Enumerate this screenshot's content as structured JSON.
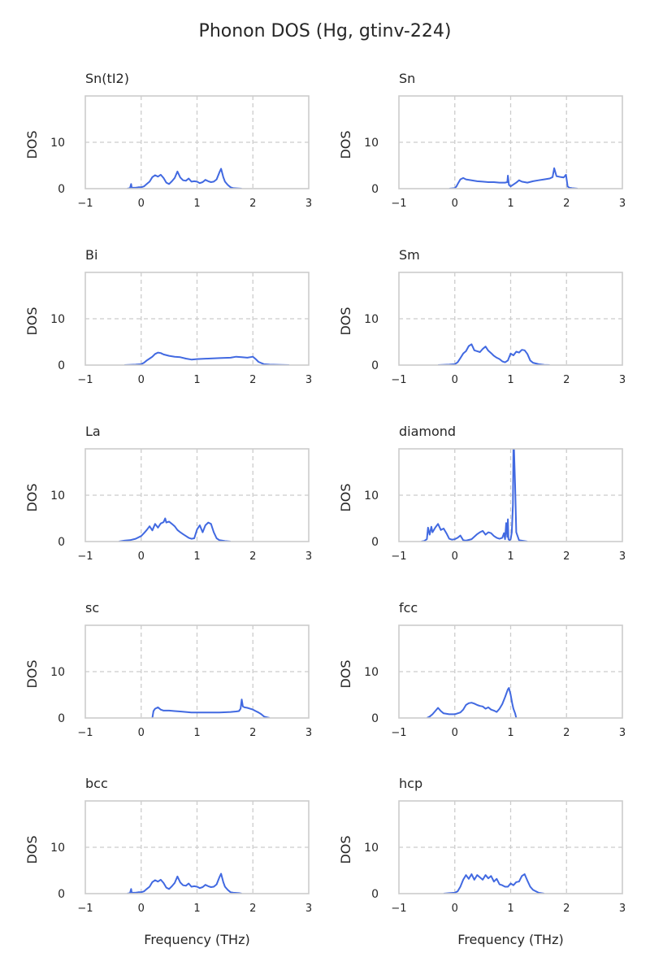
{
  "figure": {
    "title": "Phonon DOS (Hg, gtinv-224)",
    "line_color": "#4169e1",
    "frame_color": "#cccccc",
    "grid_color": "#cccccc",
    "text_color": "#262626"
  },
  "chart_data": [
    {
      "type": "line",
      "title": "Sn(tI2)",
      "ylabel": "DOS",
      "xlabel": "",
      "xlim": [
        -1,
        3
      ],
      "ylim": [
        0,
        20
      ],
      "xticks": [
        -1,
        0,
        1,
        2,
        3
      ],
      "xtick_labels": [
        "−1",
        "0",
        "1",
        "2",
        "3"
      ],
      "yticks": [
        0,
        10
      ],
      "ytick_labels": [
        "0",
        "10"
      ],
      "grid": true,
      "series": [
        {
          "x": [
            -0.25,
            -0.2,
            -0.18,
            -0.17,
            -0.15,
            -0.1,
            -0.05,
            0.0,
            0.05,
            0.1,
            0.15,
            0.2,
            0.25,
            0.3,
            0.35,
            0.4,
            0.45,
            0.5,
            0.55,
            0.6,
            0.65,
            0.7,
            0.75,
            0.8,
            0.85,
            0.9,
            0.95,
            1.0,
            1.05,
            1.1,
            1.15,
            1.2,
            1.25,
            1.3,
            1.35,
            1.4,
            1.43,
            1.47,
            1.5,
            1.55,
            1.6,
            1.65,
            1.8
          ],
          "y": [
            0,
            0.1,
            1.0,
            0.2,
            0.2,
            0.2,
            0.3,
            0.3,
            0.5,
            1.0,
            1.5,
            2.5,
            2.9,
            2.6,
            3.0,
            2.3,
            1.3,
            1.0,
            1.6,
            2.3,
            3.7,
            2.4,
            1.8,
            1.7,
            2.2,
            1.5,
            1.6,
            1.5,
            1.2,
            1.4,
            1.9,
            1.6,
            1.4,
            1.5,
            2.0,
            3.5,
            4.3,
            2.5,
            1.5,
            0.8,
            0.3,
            0.1,
            0
          ]
        }
      ]
    },
    {
      "type": "line",
      "title": "Sn",
      "ylabel": "DOS",
      "xlabel": "",
      "xlim": [
        -1,
        3
      ],
      "ylim": [
        0,
        20
      ],
      "xticks": [
        -1,
        0,
        1,
        2,
        3
      ],
      "xtick_labels": [
        "−1",
        "0",
        "1",
        "2",
        "3"
      ],
      "yticks": [
        0,
        10
      ],
      "ytick_labels": [
        "0",
        "10"
      ],
      "grid": true,
      "series": [
        {
          "x": [
            -0.1,
            0.0,
            0.03,
            0.06,
            0.1,
            0.15,
            0.2,
            0.3,
            0.4,
            0.5,
            0.6,
            0.7,
            0.8,
            0.9,
            0.94,
            0.95,
            0.97,
            1.0,
            1.05,
            1.1,
            1.15,
            1.2,
            1.3,
            1.4,
            1.5,
            1.6,
            1.7,
            1.75,
            1.78,
            1.82,
            1.9,
            1.95,
            1.99,
            2.02,
            2.05,
            2.1,
            2.2
          ],
          "y": [
            0,
            0.1,
            0.5,
            1.2,
            2.0,
            2.3,
            2.0,
            1.8,
            1.6,
            1.5,
            1.4,
            1.4,
            1.3,
            1.3,
            1.4,
            2.8,
            0.8,
            0.5,
            0.9,
            1.3,
            1.8,
            1.5,
            1.3,
            1.6,
            1.8,
            2.0,
            2.2,
            2.5,
            4.4,
            2.7,
            2.5,
            2.4,
            3.0,
            0.5,
            0.2,
            0.1,
            0
          ]
        }
      ]
    },
    {
      "type": "line",
      "title": "Bi",
      "ylabel": "DOS",
      "xlabel": "",
      "xlim": [
        -1,
        3
      ],
      "ylim": [
        0,
        20
      ],
      "xticks": [
        -1,
        0,
        1,
        2,
        3
      ],
      "xtick_labels": [
        "−1",
        "0",
        "1",
        "2",
        "3"
      ],
      "yticks": [
        0,
        10
      ],
      "ytick_labels": [
        "0",
        "10"
      ],
      "grid": true,
      "series": [
        {
          "x": [
            -0.3,
            -0.1,
            0.0,
            0.05,
            0.1,
            0.15,
            0.2,
            0.25,
            0.3,
            0.35,
            0.4,
            0.5,
            0.6,
            0.7,
            0.8,
            0.9,
            1.0,
            1.2,
            1.4,
            1.6,
            1.7,
            1.8,
            1.9,
            2.0,
            2.05,
            2.1,
            2.2,
            2.3,
            2.5,
            2.65
          ],
          "y": [
            0,
            0.1,
            0.2,
            0.5,
            1.0,
            1.4,
            1.8,
            2.4,
            2.7,
            2.6,
            2.3,
            2.0,
            1.8,
            1.7,
            1.4,
            1.2,
            1.3,
            1.4,
            1.5,
            1.6,
            1.8,
            1.7,
            1.6,
            1.8,
            1.3,
            0.7,
            0.2,
            0.1,
            0.05,
            0
          ]
        }
      ]
    },
    {
      "type": "line",
      "title": "Sm",
      "ylabel": "DOS",
      "xlabel": "",
      "xlim": [
        -1,
        3
      ],
      "ylim": [
        0,
        20
      ],
      "xticks": [
        -1,
        0,
        1,
        2,
        3
      ],
      "xtick_labels": [
        "−1",
        "0",
        "1",
        "2",
        "3"
      ],
      "yticks": [
        0,
        10
      ],
      "ytick_labels": [
        "0",
        "10"
      ],
      "grid": true,
      "series": [
        {
          "x": [
            -0.3,
            -0.1,
            0.0,
            0.05,
            0.1,
            0.15,
            0.2,
            0.25,
            0.3,
            0.35,
            0.4,
            0.45,
            0.5,
            0.55,
            0.6,
            0.65,
            0.7,
            0.75,
            0.8,
            0.85,
            0.9,
            0.95,
            1.0,
            1.05,
            1.1,
            1.15,
            1.2,
            1.25,
            1.3,
            1.35,
            1.4,
            1.5,
            1.6,
            1.7
          ],
          "y": [
            0,
            0.1,
            0.2,
            0.6,
            1.5,
            2.5,
            3.0,
            4.1,
            4.5,
            3.2,
            3.0,
            2.8,
            3.5,
            4.0,
            3.1,
            2.6,
            2.0,
            1.6,
            1.3,
            0.8,
            0.6,
            1.0,
            2.5,
            2.1,
            2.9,
            2.7,
            3.3,
            3.2,
            2.4,
            1.0,
            0.5,
            0.2,
            0.05,
            0
          ]
        }
      ]
    },
    {
      "type": "line",
      "title": "La",
      "ylabel": "DOS",
      "xlabel": "",
      "xlim": [
        -1,
        3
      ],
      "ylim": [
        0,
        20
      ],
      "xticks": [
        -1,
        0,
        1,
        2,
        3
      ],
      "xtick_labels": [
        "−1",
        "0",
        "1",
        "2",
        "3"
      ],
      "yticks": [
        0,
        10
      ],
      "ytick_labels": [
        "0",
        "10"
      ],
      "grid": true,
      "series": [
        {
          "x": [
            -0.4,
            -0.3,
            -0.2,
            -0.1,
            0.0,
            0.05,
            0.1,
            0.15,
            0.2,
            0.25,
            0.3,
            0.35,
            0.4,
            0.43,
            0.45,
            0.5,
            0.55,
            0.6,
            0.65,
            0.7,
            0.75,
            0.8,
            0.85,
            0.9,
            0.95,
            1.0,
            1.05,
            1.1,
            1.15,
            1.2,
            1.25,
            1.3,
            1.35,
            1.4,
            1.5,
            1.6
          ],
          "y": [
            0,
            0.2,
            0.3,
            0.6,
            1.2,
            1.8,
            2.5,
            3.3,
            2.4,
            3.8,
            3.0,
            3.9,
            4.2,
            5.0,
            4.1,
            4.3,
            3.8,
            3.3,
            2.5,
            2.0,
            1.6,
            1.2,
            0.8,
            0.6,
            0.7,
            2.6,
            3.5,
            2.0,
            3.5,
            4.1,
            3.8,
            2.0,
            0.7,
            0.3,
            0.1,
            0
          ]
        }
      ]
    },
    {
      "type": "line",
      "title": "diamond",
      "ylabel": "DOS",
      "xlabel": "",
      "xlim": [
        -1,
        3
      ],
      "ylim": [
        0,
        20
      ],
      "xticks": [
        -1,
        0,
        1,
        2,
        3
      ],
      "xtick_labels": [
        "−1",
        "0",
        "1",
        "2",
        "3"
      ],
      "yticks": [
        0,
        10
      ],
      "ytick_labels": [
        "0",
        "10"
      ],
      "grid": true,
      "series": [
        {
          "x": [
            -0.6,
            -0.55,
            -0.5,
            -0.48,
            -0.45,
            -0.42,
            -0.4,
            -0.35,
            -0.3,
            -0.25,
            -0.2,
            -0.15,
            -0.1,
            -0.05,
            0.0,
            0.05,
            0.1,
            0.15,
            0.2,
            0.3,
            0.4,
            0.45,
            0.5,
            0.55,
            0.6,
            0.65,
            0.7,
            0.75,
            0.8,
            0.85,
            0.88,
            0.9,
            0.92,
            0.94,
            0.95,
            0.96,
            0.98,
            1.0,
            1.02,
            1.04,
            1.05,
            1.06,
            1.08,
            1.1,
            1.15,
            1.3
          ],
          "y": [
            0,
            0.1,
            0.5,
            3.0,
            1.5,
            3.2,
            2.0,
            3.0,
            3.8,
            2.5,
            2.8,
            1.8,
            0.6,
            0.4,
            0.5,
            0.8,
            1.3,
            0.3,
            0.2,
            0.5,
            1.6,
            2.0,
            2.3,
            1.5,
            2.0,
            1.8,
            1.2,
            0.8,
            0.6,
            0.8,
            1.8,
            0.5,
            4.0,
            1.0,
            4.8,
            0.5,
            0.3,
            0.5,
            2.0,
            8.0,
            20.0,
            20.0,
            12.0,
            2.0,
            0.3,
            0
          ]
        }
      ]
    },
    {
      "type": "line",
      "title": "sc",
      "ylabel": "DOS",
      "xlabel": "",
      "xlim": [
        -1,
        3
      ],
      "ylim": [
        0,
        20
      ],
      "xticks": [
        -1,
        0,
        1,
        2,
        3
      ],
      "xtick_labels": [
        "−1",
        "0",
        "1",
        "2",
        "3"
      ],
      "yticks": [
        0,
        10
      ],
      "ytick_labels": [
        "0",
        "10"
      ],
      "grid": true,
      "series": [
        {
          "x": [
            0.2,
            0.22,
            0.25,
            0.3,
            0.35,
            0.4,
            0.5,
            0.6,
            0.7,
            0.8,
            0.9,
            1.0,
            1.2,
            1.4,
            1.6,
            1.7,
            1.75,
            1.78,
            1.8,
            1.82,
            1.85,
            1.9,
            1.95,
            2.0,
            2.05,
            2.1,
            2.15,
            2.2,
            2.3
          ],
          "y": [
            0,
            1.5,
            2.0,
            2.3,
            1.8,
            1.6,
            1.6,
            1.5,
            1.4,
            1.3,
            1.2,
            1.2,
            1.2,
            1.2,
            1.3,
            1.4,
            1.5,
            2.0,
            4.0,
            2.5,
            2.3,
            2.2,
            2.0,
            1.8,
            1.5,
            1.2,
            0.8,
            0.3,
            0
          ]
        }
      ]
    },
    {
      "type": "line",
      "title": "fcc",
      "ylabel": "DOS",
      "xlabel": "",
      "xlim": [
        -1,
        3
      ],
      "ylim": [
        0,
        20
      ],
      "xticks": [
        -1,
        0,
        1,
        2,
        3
      ],
      "xtick_labels": [
        "−1",
        "0",
        "1",
        "2",
        "3"
      ],
      "yticks": [
        0,
        10
      ],
      "ytick_labels": [
        "0",
        "10"
      ],
      "grid": true,
      "series": [
        {
          "x": [
            -0.5,
            -0.45,
            -0.4,
            -0.35,
            -0.3,
            -0.25,
            -0.2,
            -0.1,
            0.0,
            0.1,
            0.15,
            0.2,
            0.25,
            0.3,
            0.35,
            0.4,
            0.45,
            0.5,
            0.55,
            0.6,
            0.65,
            0.7,
            0.75,
            0.8,
            0.85,
            0.9,
            0.95,
            0.97,
            1.0,
            1.03,
            1.05,
            1.08,
            1.1
          ],
          "y": [
            0,
            0.3,
            0.8,
            1.5,
            2.2,
            1.5,
            1.0,
            0.8,
            0.8,
            1.2,
            1.8,
            2.8,
            3.2,
            3.3,
            3.1,
            2.8,
            2.6,
            2.5,
            2.0,
            2.3,
            1.8,
            1.6,
            1.3,
            2.0,
            3.0,
            4.5,
            6.2,
            6.5,
            5.0,
            3.0,
            2.0,
            1.0,
            0
          ]
        }
      ]
    },
    {
      "type": "line",
      "title": "bcc",
      "ylabel": "DOS",
      "xlabel": "Frequency (THz)",
      "xlim": [
        -1,
        3
      ],
      "ylim": [
        0,
        20
      ],
      "xticks": [
        -1,
        0,
        1,
        2,
        3
      ],
      "xtick_labels": [
        "−1",
        "0",
        "1",
        "2",
        "3"
      ],
      "yticks": [
        0,
        10
      ],
      "ytick_labels": [
        "0",
        "10"
      ],
      "grid": true,
      "series": [
        {
          "x": [
            -0.25,
            -0.2,
            -0.18,
            -0.17,
            -0.15,
            -0.1,
            -0.05,
            0.0,
            0.05,
            0.1,
            0.15,
            0.2,
            0.25,
            0.3,
            0.35,
            0.4,
            0.45,
            0.5,
            0.55,
            0.6,
            0.65,
            0.7,
            0.75,
            0.8,
            0.85,
            0.9,
            0.95,
            1.0,
            1.05,
            1.1,
            1.15,
            1.2,
            1.25,
            1.3,
            1.35,
            1.4,
            1.43,
            1.47,
            1.5,
            1.55,
            1.6,
            1.65,
            1.75,
            1.8
          ],
          "y": [
            0,
            0.1,
            1.0,
            0.2,
            0.2,
            0.2,
            0.3,
            0.3,
            0.5,
            1.0,
            1.5,
            2.5,
            2.9,
            2.6,
            3.0,
            2.3,
            1.3,
            1.0,
            1.6,
            2.3,
            3.7,
            2.4,
            1.8,
            1.7,
            2.2,
            1.5,
            1.6,
            1.5,
            1.2,
            1.4,
            1.9,
            1.6,
            1.4,
            1.5,
            2.0,
            3.5,
            4.3,
            2.5,
            1.5,
            0.8,
            0.3,
            0.2,
            0.1,
            0
          ]
        }
      ]
    },
    {
      "type": "line",
      "title": "hcp",
      "ylabel": "DOS",
      "xlabel": "Frequency (THz)",
      "xlim": [
        -1,
        3
      ],
      "ylim": [
        0,
        20
      ],
      "xticks": [
        -1,
        0,
        1,
        2,
        3
      ],
      "xtick_labels": [
        "−1",
        "0",
        "1",
        "2",
        "3"
      ],
      "yticks": [
        0,
        10
      ],
      "ytick_labels": [
        "0",
        "10"
      ],
      "grid": true,
      "series": [
        {
          "x": [
            -0.2,
            -0.1,
            0.0,
            0.05,
            0.1,
            0.15,
            0.2,
            0.25,
            0.3,
            0.35,
            0.4,
            0.45,
            0.5,
            0.55,
            0.6,
            0.65,
            0.7,
            0.75,
            0.8,
            0.85,
            0.9,
            0.95,
            1.0,
            1.05,
            1.1,
            1.15,
            1.2,
            1.25,
            1.3,
            1.35,
            1.4,
            1.5,
            1.6
          ],
          "y": [
            0,
            0.1,
            0.2,
            0.5,
            1.5,
            3.0,
            4.0,
            3.2,
            4.2,
            3.0,
            4.0,
            3.5,
            3.0,
            4.0,
            3.3,
            3.8,
            2.6,
            3.2,
            2.0,
            1.8,
            1.5,
            1.5,
            2.2,
            1.8,
            2.5,
            2.6,
            3.8,
            4.2,
            2.8,
            1.5,
            0.8,
            0.2,
            0
          ]
        }
      ]
    }
  ]
}
